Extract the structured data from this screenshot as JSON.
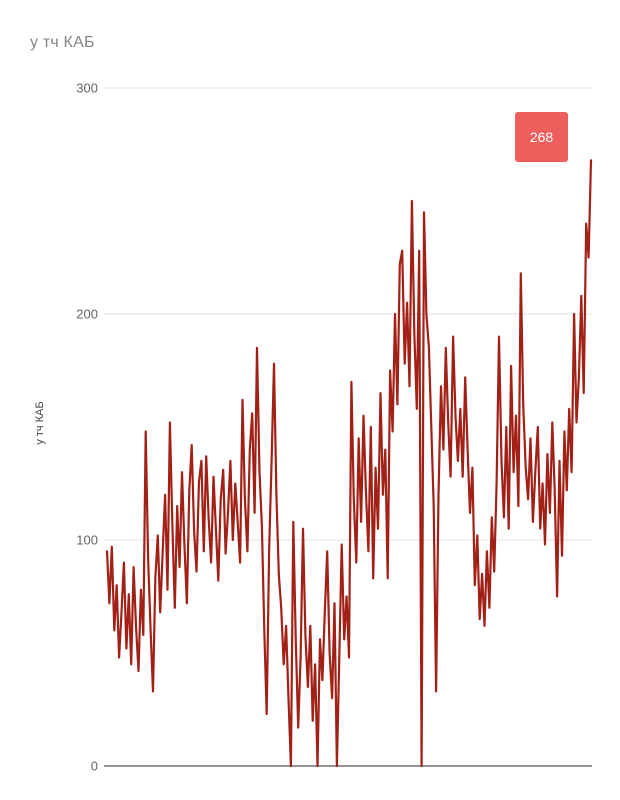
{
  "header": {
    "title": "у тч КАБ"
  },
  "chart": {
    "ylabel": "у тч КАБ",
    "colors": {
      "line": "#a22015",
      "grid": "#e0e0e0",
      "axis": "#949494",
      "tick_text": "#646464",
      "title_text": "#858585",
      "badge_bg": "#ee5e5c",
      "badge_text": "#ffffff",
      "background": "#ffffff"
    },
    "badge": {
      "value": "268"
    }
  },
  "chart_data": {
    "type": "line",
    "title": "у тч КАБ",
    "xlabel": "",
    "ylabel": "у тч КАБ",
    "ylim": [
      0,
      300
    ],
    "yticks": [
      0,
      100,
      200,
      300
    ],
    "grid": true,
    "legend": false,
    "x_axis_labels": "none (unlabeled time index)",
    "n_points": 201,
    "last_value_label": 268,
    "series": [
      {
        "name": "у тч КАБ",
        "color": "#a22015",
        "values": [
          95,
          72,
          97,
          60,
          80,
          48,
          68,
          90,
          52,
          76,
          45,
          88,
          62,
          42,
          78,
          58,
          148,
          92,
          60,
          33,
          84,
          102,
          68,
          95,
          120,
          78,
          152,
          108,
          70,
          115,
          88,
          130,
          98,
          72,
          122,
          142,
          104,
          86,
          126,
          135,
          95,
          137,
          110,
          90,
          128,
          105,
          82,
          118,
          131,
          94,
          112,
          135,
          100,
          125,
          108,
          90,
          162,
          118,
          95,
          140,
          156,
          112,
          185,
          130,
          106,
          60,
          23,
          95,
          135,
          178,
          120,
          85,
          70,
          45,
          62,
          30,
          0,
          108,
          55,
          17,
          48,
          105,
          58,
          35,
          62,
          20,
          45,
          0,
          56,
          38,
          68,
          95,
          50,
          30,
          72,
          0,
          48,
          98,
          56,
          75,
          48,
          170,
          118,
          90,
          145,
          108,
          155,
          122,
          95,
          150,
          83,
          132,
          105,
          165,
          120,
          140,
          83,
          175,
          148,
          200,
          160,
          222,
          228,
          178,
          205,
          168,
          250,
          192,
          158,
          228,
          0,
          245,
          200,
          185,
          150,
          115,
          33,
          120,
          168,
          140,
          185,
          152,
          128,
          190,
          155,
          135,
          158,
          128,
          172,
          140,
          112,
          132,
          80,
          102,
          65,
          85,
          62,
          95,
          70,
          110,
          86,
          125,
          190,
          135,
          110,
          150,
          105,
          177,
          130,
          155,
          115,
          218,
          160,
          132,
          118,
          145,
          108,
          130,
          150,
          105,
          125,
          98,
          138,
          112,
          152,
          122,
          75,
          135,
          93,
          148,
          122,
          158,
          130,
          200,
          152,
          172,
          208,
          165,
          240,
          225,
          268
        ]
      }
    ]
  }
}
